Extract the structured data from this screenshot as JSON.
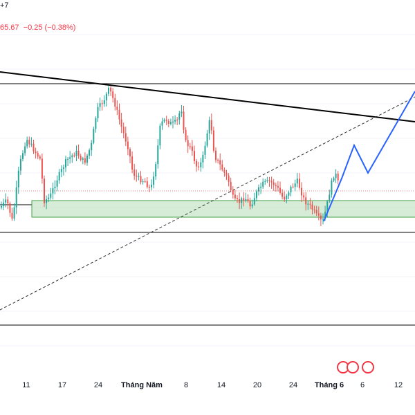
{
  "header": {
    "top_left_text": "+7",
    "price_change_text": "65.67  −0.25 (−0.38%)"
  },
  "xaxis": {
    "ticks": [
      {
        "label": "11",
        "bold": false
      },
      {
        "label": "17",
        "bold": false
      },
      {
        "label": "24",
        "bold": false
      },
      {
        "label": "Tháng Năm",
        "bold": true
      },
      {
        "label": "8",
        "bold": false
      },
      {
        "label": "14",
        "bold": false
      },
      {
        "label": "20",
        "bold": false
      },
      {
        "label": "24",
        "bold": false
      },
      {
        "label": "Tháng 6",
        "bold": true
      },
      {
        "label": "6",
        "bold": false
      },
      {
        "label": "12",
        "bold": false
      }
    ]
  },
  "events": {
    "icons": [
      "us-flag-icon",
      "us-flag-icon",
      "us-flag-icon"
    ]
  },
  "colors": {
    "bull": "#26a69a",
    "bear": "#ef5350",
    "zone_fill": "#c8e6c9",
    "zone_border": "#43a047",
    "projection": "#2962ff",
    "trendline": "#000000",
    "last_price_line": "#ef5350"
  }
}
